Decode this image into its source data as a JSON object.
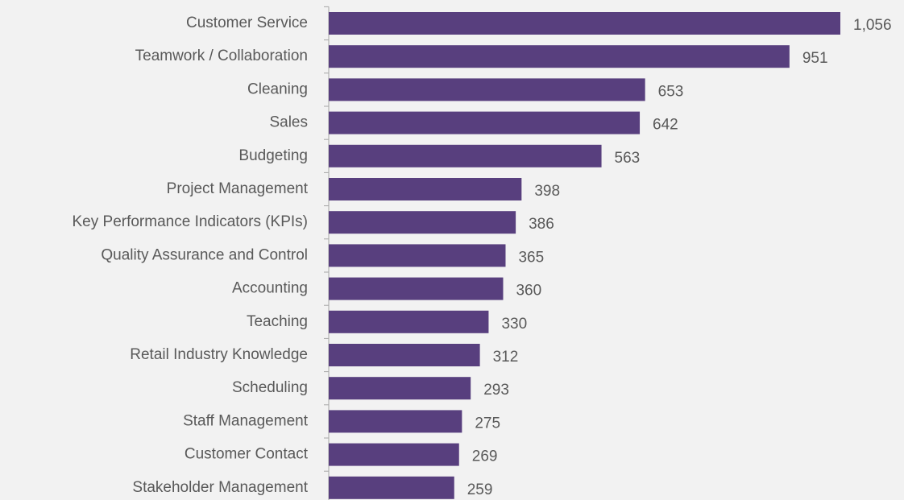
{
  "chart_data": {
    "type": "bar",
    "orientation": "horizontal",
    "categories": [
      "Customer Service",
      "Teamwork / Collaboration",
      "Cleaning",
      "Sales",
      "Budgeting",
      "Project Management",
      "Key Performance Indicators (KPIs)",
      "Quality Assurance and Control",
      "Accounting",
      "Teaching",
      "Retail Industry Knowledge",
      "Scheduling",
      "Staff Management",
      "Customer Contact",
      "Stakeholder Management"
    ],
    "values": [
      1056,
      951,
      653,
      642,
      563,
      398,
      386,
      365,
      360,
      330,
      312,
      293,
      275,
      269,
      259
    ],
    "value_labels": [
      "1,056",
      "951",
      "653",
      "642",
      "563",
      "398",
      "386",
      "365",
      "360",
      "330",
      "312",
      "293",
      "275",
      "269",
      "259"
    ],
    "color": "#583f7e"
  }
}
